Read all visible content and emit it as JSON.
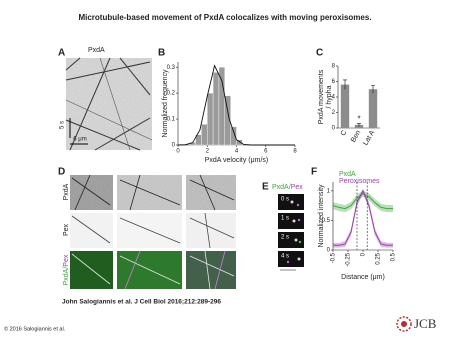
{
  "title": "Microtubule-based movement of PxdA colocalizes with moving peroxisomes.",
  "panels": {
    "a": {
      "label": "A",
      "title": "PxdA",
      "time_scale": "5 s",
      "space_scale": "6 μm"
    },
    "d": {
      "label": "D",
      "rows": [
        "PxdA",
        "Pex"
      ],
      "merge_label": [
        "PxdA/",
        "Pex"
      ]
    },
    "e": {
      "label": "E",
      "merge_label": [
        "PxdA/",
        "Pex"
      ],
      "times": [
        "0 s",
        "1 s",
        "2 s",
        "4 s"
      ]
    }
  },
  "chart_data": [
    {
      "type": "histogram",
      "panel_label": "B",
      "xlabel": "PxdA velocity (μm/s)",
      "ylabel": "Normalized frequency",
      "bins": [
        0.8,
        1.2,
        1.6,
        2.0,
        2.4,
        2.8,
        3.2,
        3.6,
        4.0,
        4.4
      ],
      "values": [
        0.01,
        0.04,
        0.08,
        0.2,
        0.28,
        0.3,
        0.19,
        0.07,
        0.02
      ],
      "color": "#9a9a9a",
      "fit": {
        "x": [
          0,
          0.5,
          1,
          1.5,
          2,
          2.5,
          3,
          3.5,
          4,
          4.5,
          5,
          6,
          8
        ],
        "y": [
          0,
          0.001,
          0.009,
          0.058,
          0.188,
          0.306,
          0.248,
          0.1,
          0.02,
          0.002,
          0,
          0,
          0
        ]
      },
      "xlim": [
        0,
        8
      ],
      "ylim": [
        0,
        0.32
      ],
      "xticks": [
        0,
        2,
        4,
        6,
        8
      ],
      "yticks": [
        0,
        0.1,
        0.2,
        0.3
      ]
    },
    {
      "type": "bar",
      "panel_label": "C",
      "ylabel": [
        "PxdA movements",
        "/ hypha"
      ],
      "categories": [
        "C",
        "Ben",
        "Lat A"
      ],
      "values": [
        5.6,
        0.4,
        5.0
      ],
      "errors": [
        0.6,
        0.2,
        0.5
      ],
      "color": "#8c8c8c",
      "annotation": "*",
      "ylim": [
        0,
        8
      ],
      "yticks": [
        0,
        2,
        4,
        6,
        8
      ]
    },
    {
      "type": "line",
      "panel_label": "F",
      "xlabel": "Distance (μm)",
      "ylabel": "Normalized intensity",
      "x": [
        -0.5,
        -0.4,
        -0.3,
        -0.2,
        -0.1,
        0,
        0.1,
        0.2,
        0.3,
        0.4,
        0.5
      ],
      "series": [
        {
          "name": "PxdA",
          "color": "#3aa63a",
          "values": [
            0.75,
            0.72,
            0.7,
            0.75,
            0.88,
            0.95,
            0.9,
            0.8,
            0.72,
            0.7,
            0.7
          ],
          "errors": [
            0.06,
            0.06,
            0.06,
            0.06,
            0.06,
            0.05,
            0.06,
            0.06,
            0.06,
            0.06,
            0.06
          ]
        },
        {
          "name": "Peroxisomes",
          "color": "#9b3fb0",
          "values": [
            0.08,
            0.08,
            0.1,
            0.3,
            0.8,
            1.0,
            0.75,
            0.3,
            0.1,
            0.08,
            0.08
          ],
          "errors": [
            0.04,
            0.04,
            0.05,
            0.06,
            0.06,
            0.04,
            0.06,
            0.06,
            0.05,
            0.04,
            0.04
          ]
        }
      ],
      "vlines": [
        -0.1,
        0.07
      ],
      "xlim": [
        -0.5,
        0.5
      ],
      "ylim": [
        0,
        1.15
      ],
      "xticks": [
        -0.5,
        -0.25,
        0,
        0.25,
        0.5
      ],
      "yticks": [
        0,
        0.5,
        1
      ]
    }
  ],
  "footer": {
    "citation": "John Salogiannis et al. J Cell Biol 2016;212:289-296",
    "copyright": "© 2016 Salogiannis et al.",
    "logo": "JCB"
  }
}
